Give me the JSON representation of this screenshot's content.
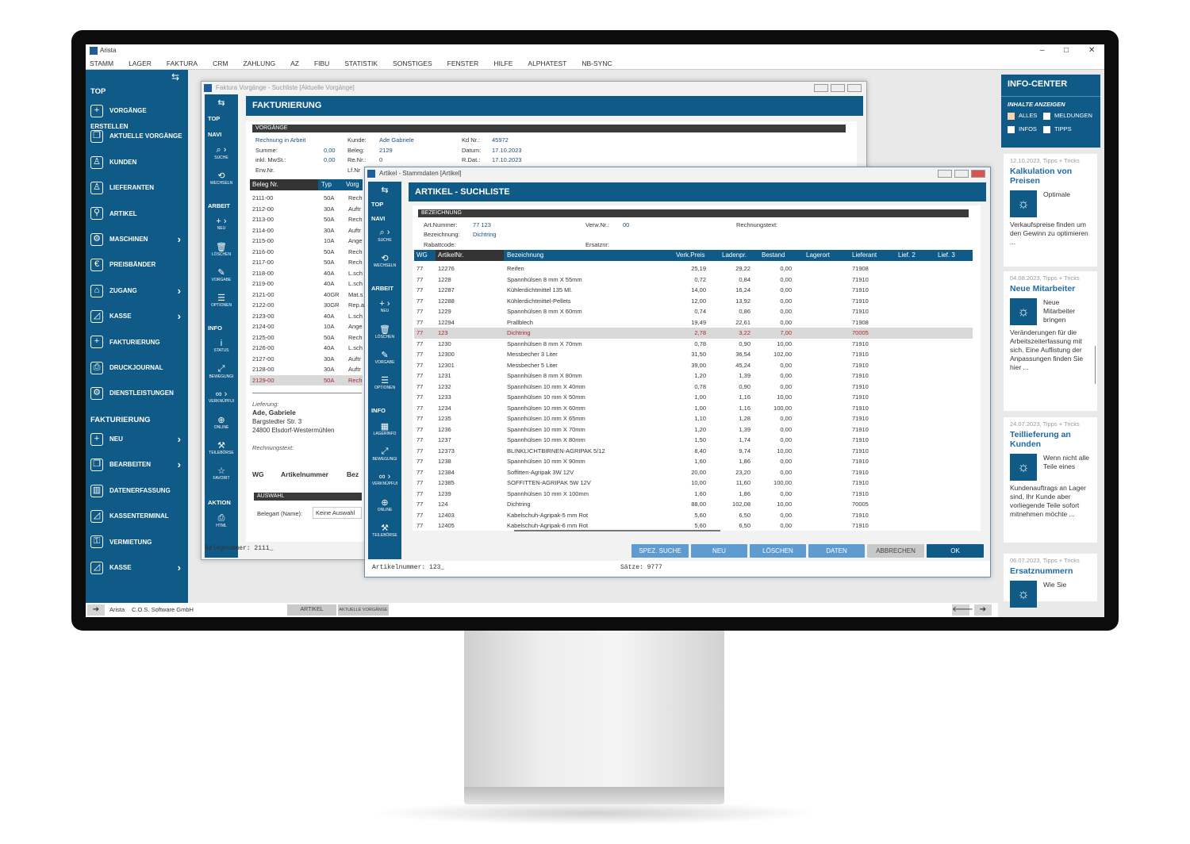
{
  "app": {
    "title": "Arista",
    "menu": [
      "STAMM",
      "LAGER",
      "FAKTURA",
      "CRM",
      "ZAHLUNG",
      "AZ",
      "FIBU",
      "STATISTIK",
      "SONSTIGES",
      "FENSTER",
      "HILFE",
      "ALPHATEST",
      "NB-SYNC"
    ]
  },
  "sidebar": {
    "top_label": "TOP",
    "items": [
      {
        "label": "VORGÄNGE ERSTELLEN",
        "icon": "plus-box-icon",
        "chev": false
      },
      {
        "label": "AKTUELLE VORGÄNGE",
        "icon": "documents-icon",
        "chev": false
      },
      {
        "label": "KUNDEN",
        "icon": "person-icon",
        "chev": false
      },
      {
        "label": "LIEFERANTEN",
        "icon": "people-icon",
        "chev": false
      },
      {
        "label": "ARTIKEL",
        "icon": "wrench-icon",
        "chev": false
      },
      {
        "label": "MASCHINEN",
        "icon": "machine-icon",
        "chev": true
      },
      {
        "label": "PREISBÄNDER",
        "icon": "euro-icon",
        "chev": false
      },
      {
        "label": "ZUGANG",
        "icon": "warehouse-icon",
        "chev": true
      },
      {
        "label": "KASSE",
        "icon": "register-icon",
        "chev": true
      },
      {
        "label": "FAKTURIERUNG",
        "icon": "plus-box-icon",
        "chev": false
      },
      {
        "label": "DRUCKJOURNAL",
        "icon": "printer-icon",
        "chev": false
      },
      {
        "label": "DIENSTLEISTUNGEN",
        "icon": "service-icon",
        "chev": false
      }
    ],
    "section2": "FAKTURIERUNG",
    "items2": [
      {
        "label": "NEU",
        "icon": "plus-box-icon",
        "chev": true
      },
      {
        "label": "BEARBEITEN",
        "icon": "documents-icon",
        "chev": true
      },
      {
        "label": "DATENERFASSUNG",
        "icon": "barcode-icon",
        "chev": false
      },
      {
        "label": "KASSENTERMINAL",
        "icon": "register-icon",
        "chev": false
      },
      {
        "label": "VERMIETUNG",
        "icon": "key-icon",
        "chev": false
      },
      {
        "label": "KASSE",
        "icon": "register-icon",
        "chev": true
      }
    ]
  },
  "statusbar": {
    "app": "Arista",
    "company": "C.O.S. Software GmbH",
    "tabs": [
      "ARTIKEL",
      "AKTUELLE VORGÄNGE"
    ]
  },
  "faktura": {
    "title": "Faktura Vorgänge - Suchliste  [Aktuelle Vorgänge]",
    "header": "FAKTURIERUNG",
    "mini": {
      "top": "TOP",
      "navi": "NAVI",
      "suche": "SUCHE",
      "wechseln": "WECHSELN",
      "arbeit": "ARBEIT",
      "neu": "NEU",
      "loeschen": "LÖSCHEN",
      "vorgabe": "VORGABE",
      "optionen": "OPTIONEN",
      "info": "INFO",
      "status": "STATUS",
      "bewegung": "BEWEGUNGI",
      "verkn": "VERKNÜPFUI",
      "online": "ONLINE",
      "teile": "TEILEBÖRSE",
      "favorit": "FAVORIT",
      "aktion": "AKTION",
      "html": "HTML"
    },
    "section": "VORGÄNGE",
    "state": "Rechnung in Arbeit",
    "fields": {
      "summe_l": "Summe:",
      "summe": "0,00",
      "mwst_l": "inkl. MwSt.:",
      "mwst": "0,00",
      "erw_l": "Erw.Nr.",
      "kunde_l": "Kunde:",
      "kunde": "Ade Gabriele",
      "beleg_l": "Beleg:",
      "beleg": "2129",
      "renr_l": "Re.Nr.:",
      "renr": "0",
      "lfnr_l": "Lf.Nr",
      "kdnr_l": "Kd Nr.:",
      "kdnr": "45972",
      "datum_l": "Datum:",
      "datum": "17.10.2023",
      "rdat_l": "R.Dat.:",
      "rdat": "17.10.2023"
    },
    "columns": [
      "Beleg Nr.",
      "Typ",
      "Vorg"
    ],
    "rows": [
      [
        "2111-00",
        "50A",
        "Rech"
      ],
      [
        "2112-00",
        "30A",
        "Auftr"
      ],
      [
        "2113-00",
        "50A",
        "Rech"
      ],
      [
        "2114-00",
        "30A",
        "Auftr"
      ],
      [
        "2115-00",
        "10A",
        "Ange"
      ],
      [
        "2116-00",
        "50A",
        "Rech"
      ],
      [
        "2117-00",
        "50A",
        "Rech"
      ],
      [
        "2118-00",
        "40A",
        "L.sch"
      ],
      [
        "2119-00",
        "40A",
        "L.sch"
      ],
      [
        "2121-00",
        "40GR",
        "Mat.s"
      ],
      [
        "2122-00",
        "30GR",
        "Rep.a"
      ],
      [
        "2123-00",
        "40A",
        "L.sch"
      ],
      [
        "2124-00",
        "10A",
        "Ange"
      ],
      [
        "2125-00",
        "50A",
        "Rech"
      ],
      [
        "2126-00",
        "40A",
        "L.sch"
      ],
      [
        "2127-00",
        "30A",
        "Auftr"
      ],
      [
        "2128-00",
        "30A",
        "Auftr"
      ],
      [
        "2129-00",
        "50A",
        "Rech"
      ]
    ],
    "selected_row": 17,
    "lieferung_l": "Lieferung:",
    "name": "Ade, Gabriele",
    "street": "Bargstedter Str. 3",
    "city": "24800 Elsdorf-Westermühlen",
    "rtext_l": "Rechnungstext:",
    "pos_cols": [
      "WG",
      "Artikelnummer",
      "Bez"
    ],
    "auswahl": "AUSWAHL",
    "belegart_l": "Belegart (Name):",
    "belegart": "Keine Auswahl",
    "status": "Belegnummer: 2111_"
  },
  "artikel": {
    "title": "Artikel - Stammdaten [Artikel]",
    "header": "ARTIKEL - SUCHLISTE",
    "mini": {
      "top": "TOP",
      "navi": "NAVI",
      "suche": "SUCHE",
      "wechseln": "WECHSELN",
      "arbeit": "ARBEIT",
      "neu": "NEU",
      "loeschen": "LÖSCHEN",
      "vorgabe": "VORGABE",
      "optionen": "OPTIONEN",
      "info": "INFO",
      "lagerinfo": "LAGERINFO",
      "bewegung": "BEWEGUNGI",
      "verkn": "VERKNÜPFUI",
      "online": "ONLINE",
      "teile": "TEILEBÖRSE"
    },
    "section": "BEZEICHNUNG",
    "fields": {
      "artnr_l": "Art.Nummer:",
      "artnr": "77  123",
      "bez_l": "Bezeichnung:",
      "bez": "Dichtring",
      "rabatt_l": "Rabattcode:",
      "verw_l": "Verw.Nr.:",
      "verw": "00",
      "ersatz_l": "Ersatznr:",
      "rtext_l": "Rechnungstext:"
    },
    "columns": [
      "WG",
      "ArtikelNr.",
      "Bezeichnung",
      "Verk.Preis",
      "Ladenpr.",
      "Bestand",
      "Lagerort",
      "Lieferant",
      "Lief. 2",
      "Lief. 3"
    ],
    "rows": [
      [
        "77",
        "12276",
        "Reifen",
        "25,19",
        "29,22",
        "0,00",
        "",
        "71908"
      ],
      [
        "77",
        "1228",
        "Spannhülsen 8  mm X 55mm",
        "0,72",
        "0,84",
        "0,00",
        "",
        "71910"
      ],
      [
        "77",
        "12287",
        "Kühlerdichtmittel 135 Ml.",
        "14,00",
        "16,24",
        "0,00",
        "",
        "71910"
      ],
      [
        "77",
        "12288",
        "Kühlerdichtmittel-Pellets",
        "12,00",
        "13,92",
        "0,00",
        "",
        "71910"
      ],
      [
        "77",
        "1229",
        "Spannhülsen 8  mm X 60mm",
        "0,74",
        "0,86",
        "0,00",
        "",
        "71910"
      ],
      [
        "77",
        "12294",
        "Prallblech",
        "19,49",
        "22,61",
        "0,00",
        "",
        "71908"
      ],
      [
        "77",
        "123",
        "Dichtring",
        "2,78",
        "3,22",
        "7,00",
        "",
        "70005"
      ],
      [
        "77",
        "1230",
        "Spannhülsen 8  mm X 70mm",
        "0,78",
        "0,90",
        "10,00",
        "",
        "71910"
      ],
      [
        "77",
        "12300",
        "Messbecher 3 Liter",
        "31,50",
        "36,54",
        "102,00",
        "",
        "71910"
      ],
      [
        "77",
        "12301",
        "Messbecher 5 Liter",
        "39,00",
        "45,24",
        "0,00",
        "",
        "71910"
      ],
      [
        "77",
        "1231",
        "Spannhülsen 8  mm X 80mm",
        "1,20",
        "1,39",
        "0,00",
        "",
        "71910"
      ],
      [
        "77",
        "1232",
        "Spannhülsen 10  mm X 40mm",
        "0,78",
        "0,90",
        "0,00",
        "",
        "71910"
      ],
      [
        "77",
        "1233",
        "Spannhülsen 10  mm X 50mm",
        "1,00",
        "1,16",
        "10,00",
        "",
        "71910"
      ],
      [
        "77",
        "1234",
        "Spannhülsen 10  mm X 60mm",
        "1,00",
        "1,16",
        "100,00",
        "",
        "71910"
      ],
      [
        "77",
        "1235",
        "Spannhülsen 10  mm X 65mm",
        "1,10",
        "1,28",
        "0,00",
        "",
        "71910"
      ],
      [
        "77",
        "1236",
        "Spannhülsen 10  mm X 70mm",
        "1,20",
        "1,39",
        "0,00",
        "",
        "71910"
      ],
      [
        "77",
        "1237",
        "Spannhülsen 10  mm X 80mm",
        "1,50",
        "1,74",
        "0,00",
        "",
        "71910"
      ],
      [
        "77",
        "12373",
        "BLINKLICHTBIRNEN-AGRIPAK 5/12",
        "8,40",
        "9,74",
        "10,00",
        "",
        "71910"
      ],
      [
        "77",
        "1238",
        "Spannhülsen 10  mm X 90mm",
        "1,60",
        "1,86",
        "0,00",
        "",
        "71910"
      ],
      [
        "77",
        "12384",
        "Soffitten-Agripak 3W 12V",
        "20,00",
        "23,20",
        "0,00",
        "",
        "71910"
      ],
      [
        "77",
        "12385",
        "SOFFITTEN-AGRIPAK 5W 12V",
        "10,00",
        "11,60",
        "100,00",
        "",
        "71910"
      ],
      [
        "77",
        "1239",
        "Spannhülsen 10  mm X 100mm",
        "1,60",
        "1,86",
        "0,00",
        "",
        "71910"
      ],
      [
        "77",
        "124",
        "Dichtring",
        "88,00",
        "102,08",
        "10,00",
        "",
        "70005"
      ],
      [
        "77",
        "12403",
        "Kabelschuh-Agripak-5  mm Rot",
        "5,60",
        "6,50",
        "0,00",
        "",
        "71910"
      ],
      [
        "77",
        "12405",
        "Kabelschuh-Agripak-6  mm Rot",
        "5,60",
        "6,50",
        "0,00",
        "",
        "71910"
      ]
    ],
    "selected_row": 6,
    "buttons": {
      "spez": "SPEZ. SUCHE",
      "neu": "NEU",
      "loeschen": "LÖSCHEN",
      "daten": "DATEN",
      "abbrechen": "ABBRECHEN",
      "ok": "OK"
    },
    "status_left": "Artikelnummer: 123_",
    "status_right": "Sätze: 9777"
  },
  "info_center": {
    "title": "INFO-CENTER",
    "subtitle": "INHALTE ANZEIGEN",
    "filters": [
      {
        "label": "ALLES",
        "checked": true
      },
      {
        "label": "MELDUNGEN",
        "checked": false
      },
      {
        "label": "INFOS",
        "checked": false
      },
      {
        "label": "TIPPS",
        "checked": false
      }
    ],
    "cards": [
      {
        "date": "12.10.2023, Tipps + Tricks",
        "title": "Kalkulation von Preisen",
        "lead": "Optimale",
        "text": "Verkaufspreise finden um den Gewinn zu optimieren ..."
      },
      {
        "date": "04.08.2023, Tipps + Tricks",
        "title": "Neue Mitarbeiter",
        "lead": "Neue Mitarbeiter bringen",
        "text": "Veränderungen für die Arbeitszeiterfassung mit sich. Eine Auflistung der Anpassungen finden Sie hier ..."
      },
      {
        "date": "24.07.2023, Tipps + Tricks",
        "title": "Teillieferung an Kunden",
        "lead": "Wenn nicht alle Teile eines",
        "text": "Kundenauftrags an Lager sind, Ihr Kunde aber vorliegende Teile sofort mitnehmen möchte ..."
      },
      {
        "date": "06.07.2023, Tipps + Tricks",
        "title": "Ersatznummern",
        "lead": "Wie Sie",
        "text": ""
      }
    ]
  },
  "colors": {
    "brand": "#0f5a87",
    "button": "#5d9bd0",
    "selected_text": "#a52a2a",
    "checkbox_checked": "#f5d5b0"
  }
}
